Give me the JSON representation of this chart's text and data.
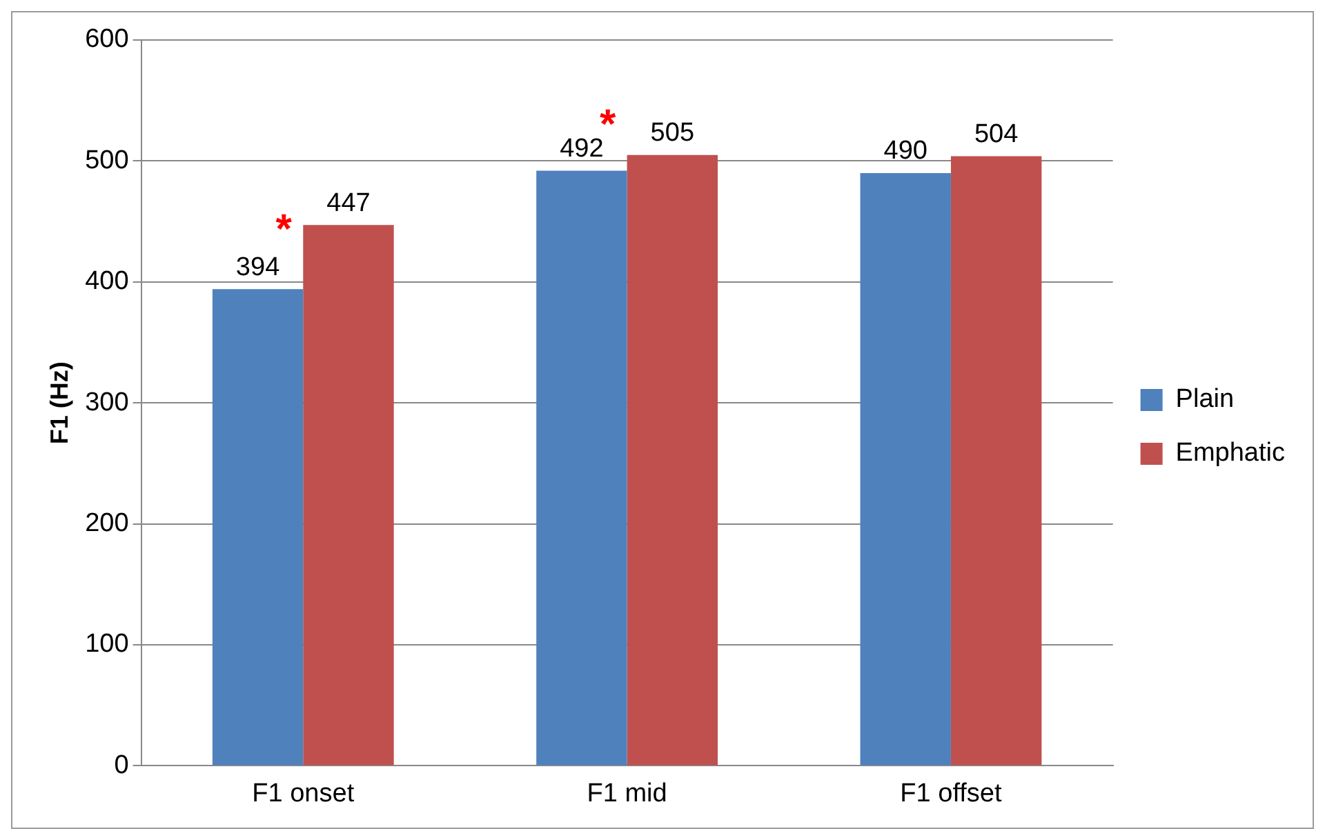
{
  "chart_data": {
    "type": "bar",
    "ylabel": "F1 (Hz)",
    "categories": [
      "F1 onset",
      "F1 mid",
      "F1 offset"
    ],
    "series": [
      {
        "name": "Plain",
        "color": "#4f81bd",
        "values": [
          394,
          492,
          490
        ]
      },
      {
        "name": "Emphatic",
        "color": "#c0504d",
        "values": [
          447,
          505,
          504
        ]
      }
    ],
    "ylim": [
      0,
      600
    ],
    "yticks": [
      0,
      100,
      200,
      300,
      400,
      500,
      600
    ],
    "grid": "y",
    "legend": "right",
    "data_labels": true,
    "annotations": [
      "*",
      "*"
    ]
  }
}
